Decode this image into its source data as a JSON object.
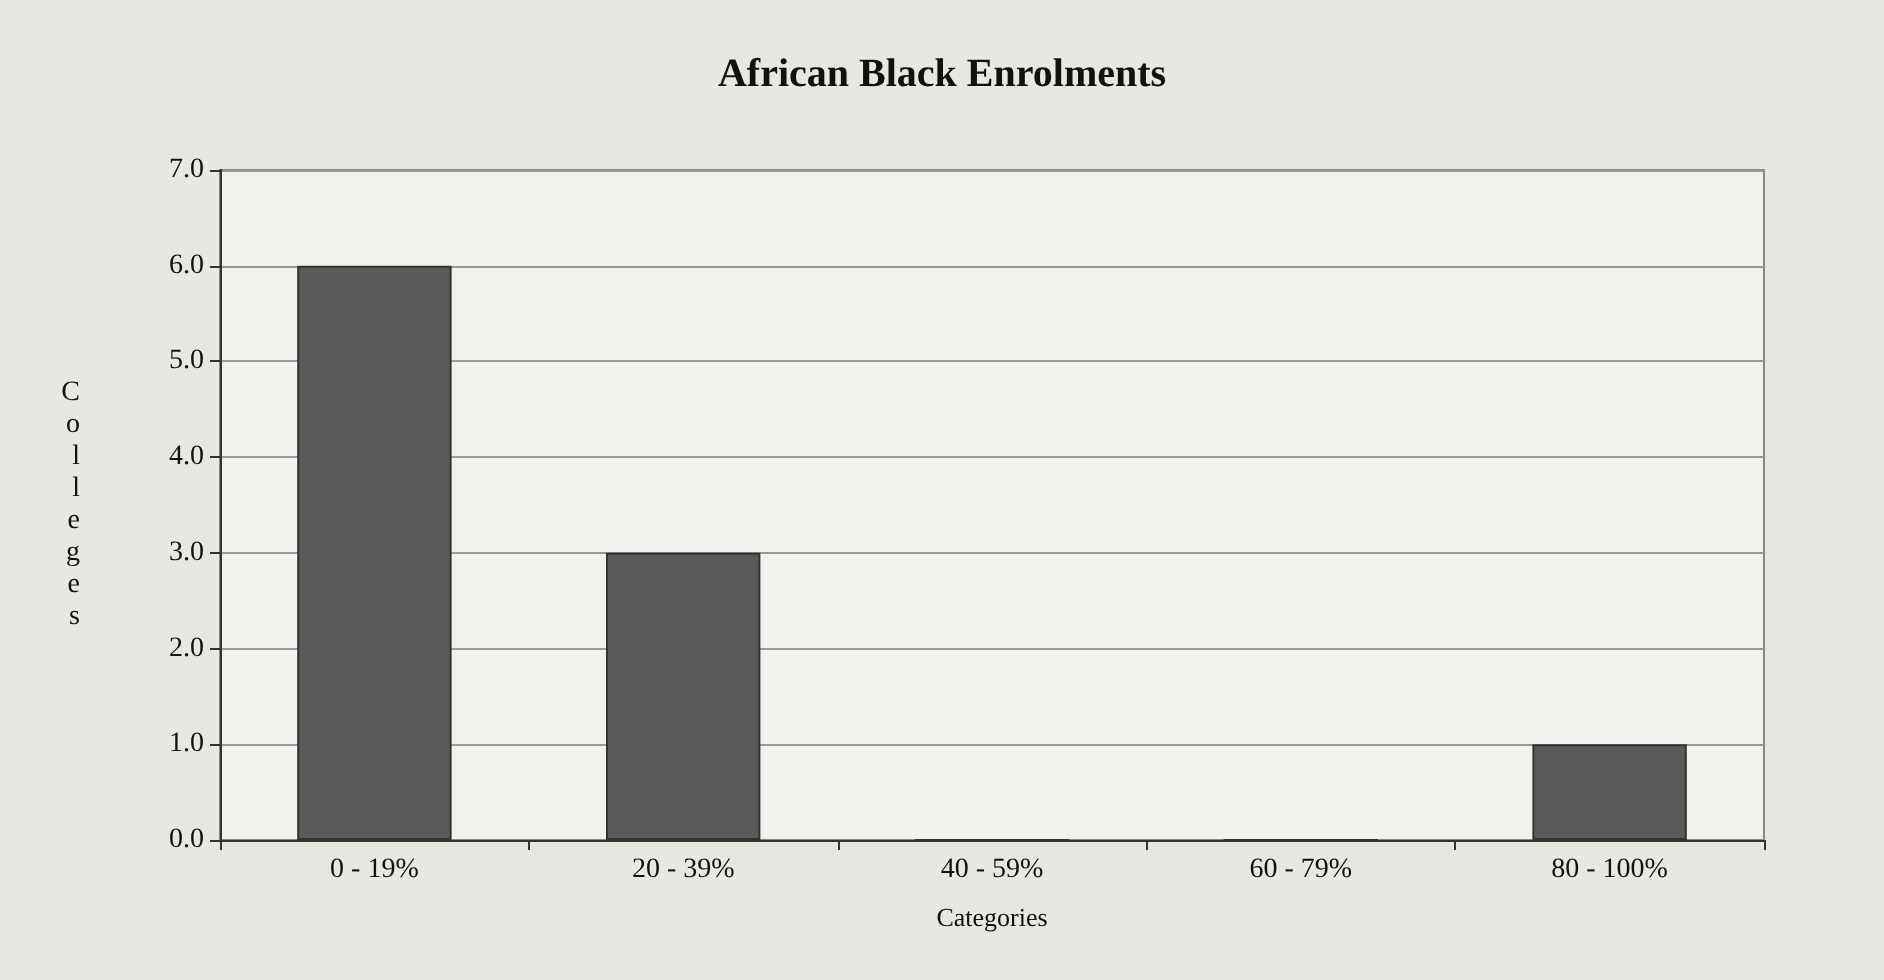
{
  "chart_data": {
    "type": "bar",
    "title": "African Black Enrolments",
    "xlabel": "Categories",
    "ylabel": "Colleges",
    "categories": [
      "0 - 19%",
      "20 - 39%",
      "40 - 59%",
      "60 - 79%",
      "80 - 100%"
    ],
    "values": [
      6,
      3,
      0,
      0,
      1
    ],
    "color": "#5a5a5a",
    "ylim": [
      0,
      7
    ],
    "yticks": [
      {
        "value": 0,
        "label": "0.0"
      },
      {
        "value": 1,
        "label": "1.0"
      },
      {
        "value": 2,
        "label": "2.0"
      },
      {
        "value": 3,
        "label": "3.0"
      },
      {
        "value": 4,
        "label": "4.0"
      },
      {
        "value": 5,
        "label": "5.0"
      },
      {
        "value": 6,
        "label": "6.0"
      },
      {
        "value": 7,
        "label": "7.0"
      }
    ],
    "grid": "y"
  }
}
